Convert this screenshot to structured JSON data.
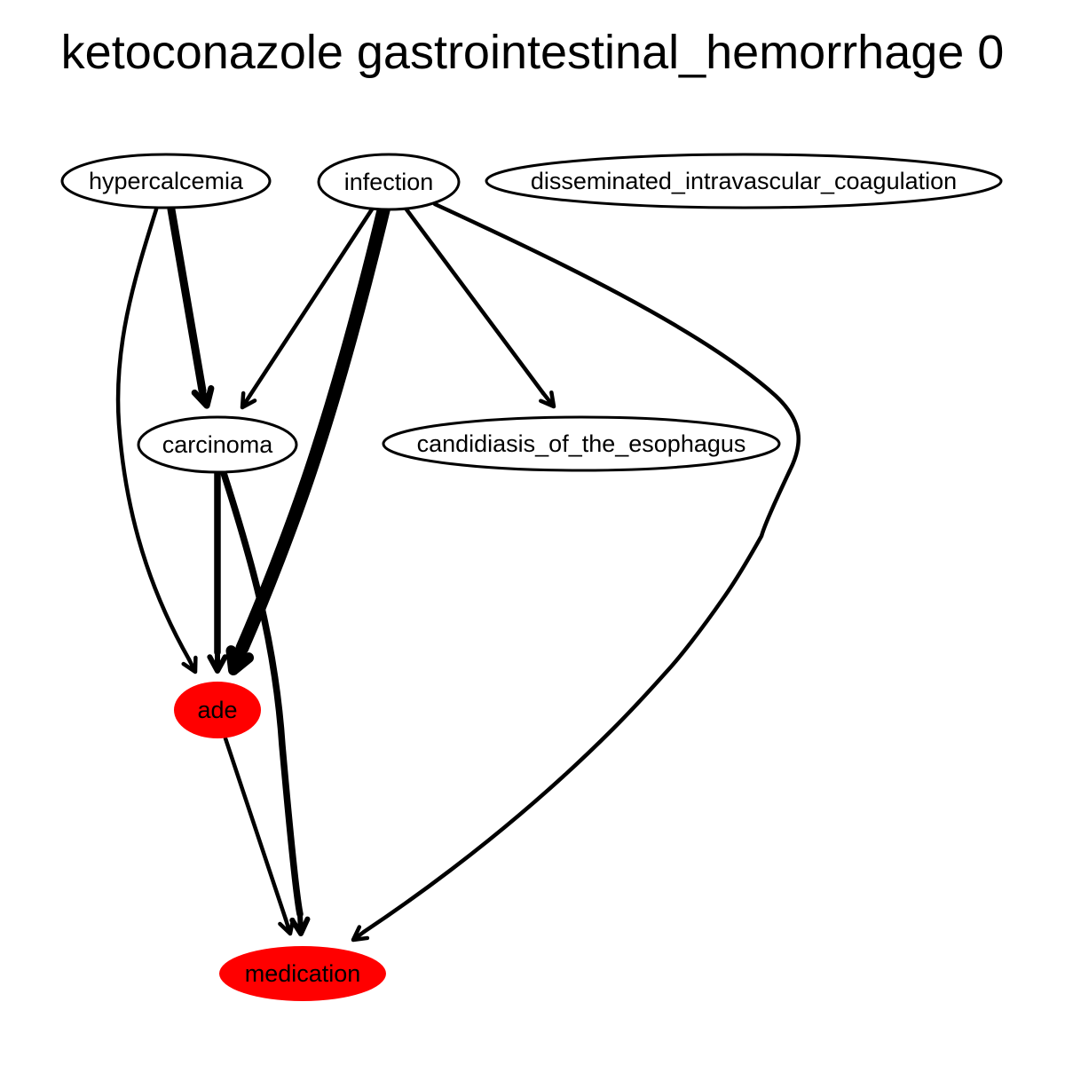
{
  "title": "ketoconazole gastrointestinal_hemorrhage 0",
  "colors": {
    "default_fill": "#ffffff",
    "highlight_fill": "#ff0000",
    "stroke": "#000000"
  },
  "nodes": [
    {
      "id": "hypercalcemia",
      "label": "hypercalcemia",
      "highlighted": false
    },
    {
      "id": "infection",
      "label": "infection",
      "highlighted": false
    },
    {
      "id": "disseminated_intravascular_coagulation",
      "label": "disseminated_intravascular_coagulation",
      "highlighted": false
    },
    {
      "id": "carcinoma",
      "label": "carcinoma",
      "highlighted": false
    },
    {
      "id": "candidiasis_of_the_esophagus",
      "label": "candidiasis_of_the_esophagus",
      "highlighted": false
    },
    {
      "id": "ade",
      "label": "ade",
      "highlighted": true
    },
    {
      "id": "medication",
      "label": "medication",
      "highlighted": true
    }
  ],
  "edges": [
    {
      "from": "hypercalcemia",
      "to": "ade",
      "weight": 1
    },
    {
      "from": "hypercalcemia",
      "to": "carcinoma",
      "weight": 3
    },
    {
      "from": "infection",
      "to": "carcinoma",
      "weight": 1
    },
    {
      "from": "infection",
      "to": "ade",
      "weight": 5
    },
    {
      "from": "infection",
      "to": "candidiasis_of_the_esophagus",
      "weight": 1
    },
    {
      "from": "infection",
      "to": "medication",
      "weight": 1
    },
    {
      "from": "carcinoma",
      "to": "ade",
      "weight": 2
    },
    {
      "from": "carcinoma",
      "to": "medication",
      "weight": 2
    },
    {
      "from": "ade",
      "to": "medication",
      "weight": 1
    }
  ]
}
